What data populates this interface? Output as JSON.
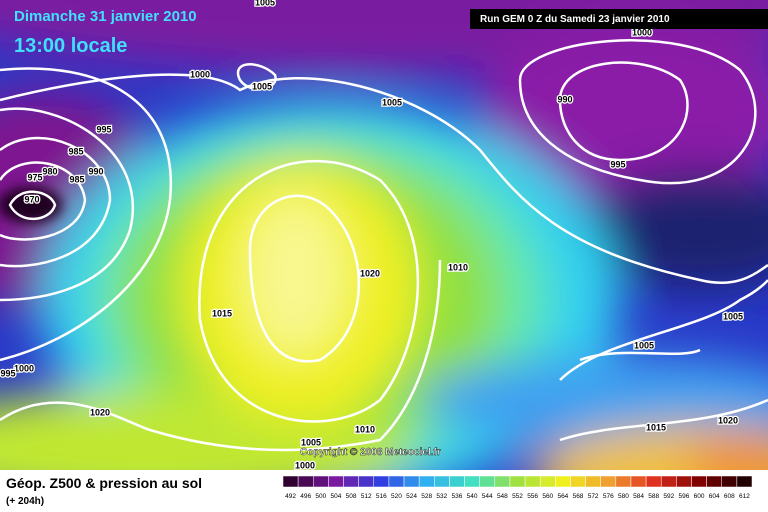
{
  "header": {
    "title": "Dimanche 31 janvier 2010",
    "subtitle": "13:00 locale",
    "run": "Run GEM 0 Z du Samedi 23 janvier 2010"
  },
  "isobar_labels": [
    "1005",
    "1000",
    "1000",
    "1005",
    "1005",
    "995",
    "990",
    "985",
    "980",
    "990",
    "975",
    "985",
    "970",
    "995",
    "1020",
    "1010",
    "1015",
    "1005",
    "1005",
    "1000",
    "995",
    "1020",
    "1010",
    "1015",
    "1020",
    "1005",
    "1000"
  ],
  "copyright": "Copyright © 2008 Meteociel.fr",
  "footer": {
    "title": "Géop. Z500 & pression au sol",
    "lead": "(+ 204h)"
  },
  "legend": {
    "scale": [
      492,
      496,
      500,
      504,
      508,
      512,
      516,
      520,
      524,
      528,
      532,
      536,
      540,
      544,
      548,
      552,
      556,
      560,
      564,
      568,
      572,
      576,
      580,
      584,
      588,
      592,
      596,
      600,
      604,
      608,
      612
    ]
  }
}
